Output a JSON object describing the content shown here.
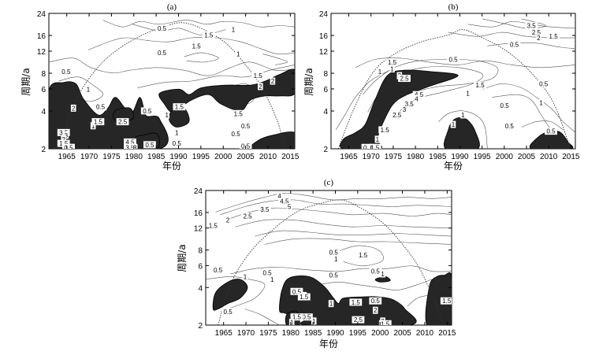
{
  "chart_data": [
    {
      "type": "heatmap",
      "title": "(a)",
      "xlabel": "年份",
      "ylabel": "周期/a",
      "x_ticks": [
        "1965",
        "1970",
        "1975",
        "1980",
        "1985",
        "1990",
        "1995",
        "2000",
        "2005",
        "2010",
        "2015"
      ],
      "y_ticks": [
        "2",
        "4",
        "6",
        "8",
        "12",
        "16",
        "24"
      ],
      "xlim": [
        1961,
        2016
      ],
      "ylim": [
        2,
        24
      ],
      "y_scale": "log",
      "contour_labels": [
        "0.5",
        "1.5",
        "1",
        "1.5",
        "0.5",
        "1",
        "1.5",
        "2",
        "0.5",
        "1",
        "0.5",
        "0.5",
        "2",
        "1",
        "1.5",
        "0.5",
        "2.5",
        "3.5",
        "3",
        "2",
        "1.5",
        "0.5",
        "4.5",
        "3.5",
        "3",
        "0.5",
        "0.5",
        "1",
        "1.5",
        "1",
        "1.5",
        "2",
        "0.5",
        "0.5",
        "0.5"
      ]
    },
    {
      "type": "heatmap",
      "title": "(b)",
      "xlabel": "年份",
      "ylabel": "周期/a",
      "x_ticks": [
        "1965",
        "1970",
        "1975",
        "1980",
        "1985",
        "1990",
        "1995",
        "2000",
        "2005",
        "2010",
        "2015"
      ],
      "y_ticks": [
        "2",
        "4",
        "6",
        "8",
        "12",
        "16",
        "24"
      ],
      "xlim": [
        1961,
        2016
      ],
      "ylim": [
        2,
        24
      ],
      "y_scale": "log",
      "contour_labels": [
        "3.5",
        "2.5",
        "2",
        "1.5",
        "0.5",
        "1.5",
        "1",
        "0.5",
        "1",
        "2",
        "2.5",
        "4.5",
        "4",
        "3.5",
        "3",
        "2.5",
        "1.5",
        "1",
        "0.5",
        "1",
        "0.5",
        "1",
        "1.5",
        "0.5",
        "1",
        "0.5",
        "0.5",
        "1",
        "1.5"
      ]
    },
    {
      "type": "heatmap",
      "title": "(c)",
      "xlabel": "年份",
      "ylabel": "周期/a",
      "x_ticks": [
        "1965",
        "1970",
        "1975",
        "1980",
        "1985",
        "1990",
        "1995",
        "2000",
        "2005",
        "2010",
        "2015"
      ],
      "y_ticks": [
        "2",
        "4",
        "6",
        "8",
        "12",
        "16",
        "24"
      ],
      "xlim": [
        1961,
        2016
      ],
      "ylim": [
        2,
        24
      ],
      "y_scale": "log",
      "contour_labels": [
        "4",
        "4.5",
        "5",
        "3.5",
        "2.5",
        "2",
        "1.5",
        "0.5",
        "1",
        "1.5",
        "0.5",
        "1",
        "0.5",
        "1",
        "0.5",
        "1",
        "0.5",
        "0.5",
        "1",
        "0.5",
        "1.5",
        "1",
        "1.5",
        "2",
        "0.5",
        "1.5",
        "1",
        "2.5",
        "2",
        "1.5",
        "0.5",
        "1.5",
        "1"
      ]
    }
  ]
}
